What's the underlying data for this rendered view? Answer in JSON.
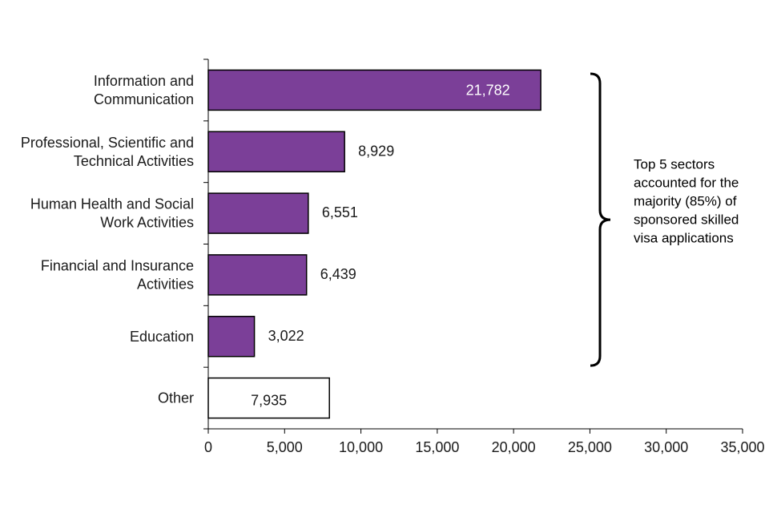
{
  "chart_data": {
    "type": "bar",
    "orientation": "horizontal",
    "categories": [
      [
        "Information and",
        "Communication"
      ],
      [
        "Professional, Scientific and",
        "Technical Activities"
      ],
      [
        "Human Health and Social",
        "Work Activities"
      ],
      [
        "Financial and Insurance",
        "Activities"
      ],
      [
        "Education"
      ],
      [
        "Other"
      ]
    ],
    "values": [
      21782,
      8929,
      6551,
      6439,
      3022,
      7935
    ],
    "value_labels": [
      "21,782",
      "8,929",
      "6,551",
      "6,439",
      "3,022",
      "7,935"
    ],
    "highlighted": [
      true,
      true,
      true,
      true,
      true,
      false
    ],
    "label_inside": [
      true,
      false,
      false,
      false,
      false,
      true
    ],
    "xlim": [
      0,
      35000
    ],
    "xticks": [
      0,
      5000,
      10000,
      15000,
      20000,
      25000,
      30000,
      35000
    ],
    "xtick_labels": [
      "0",
      "5,000",
      "10,000",
      "15,000",
      "20,000",
      "25,000",
      "30,000",
      "35,000"
    ],
    "title": "",
    "xlabel": "",
    "ylabel": "",
    "annotation": {
      "lines": [
        "Top 5 sectors",
        "accounted for the",
        "majority (85%) of",
        "sponsored skilled",
        "visa applications"
      ],
      "brackets_categories": [
        0,
        4
      ]
    },
    "colors": {
      "bar_fill": "#7b3f98",
      "bar_stroke": "#000000",
      "other_fill": "#ffffff",
      "label_inside_color": "#ffffff",
      "label_color": "#1a1a1a",
      "axis": "#000000"
    }
  }
}
